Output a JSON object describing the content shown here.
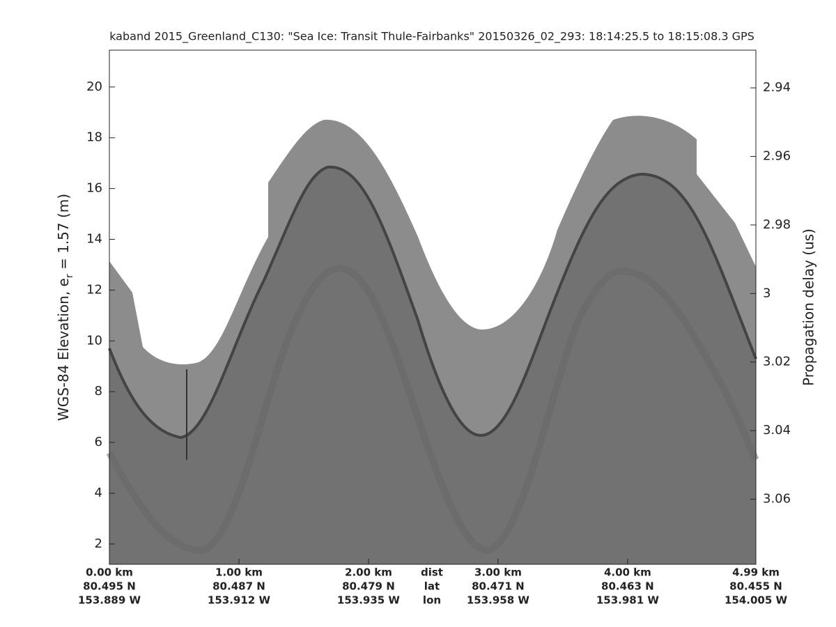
{
  "chart_data": {
    "type": "echogram",
    "title": "kaband 2015_Greenland_C130: \"Sea Ice: Transit Thule-Fairbanks\"  20150326_02_293: 18:14:25.5 to 18:15:08.3 GPS",
    "ylabel": {
      "text": "WGS-84 Elevation, e",
      "sub": "r",
      "after": " = 1.57 (m)"
    },
    "y2label": "Propagation delay (us)",
    "ylim": [
      1.2,
      21.45
    ],
    "yticks": [
      2,
      4,
      6,
      8,
      10,
      12,
      14,
      16,
      18,
      20
    ],
    "y2lim": [
      3.079,
      2.929
    ],
    "y2ticks": [
      2.94,
      2.96,
      2.98,
      3,
      3.02,
      3.04,
      3.06
    ],
    "xlim": [
      0,
      4.99
    ],
    "xticks": [
      {
        "value": 0,
        "label": "0.00 km"
      },
      {
        "value": 1,
        "label": "1.00 km"
      },
      {
        "value": 2,
        "label": "2.00 km"
      },
      {
        "value": 3,
        "label": "3.00 km"
      },
      {
        "value": 4,
        "label": "4.00 km"
      },
      {
        "value": 4.99,
        "label": "4.99 km"
      }
    ],
    "lat_labels": [
      "80.495 N",
      "80.487 N",
      "80.479 N",
      "80.471 N",
      "80.463 N",
      "80.455 N"
    ],
    "lon_labels": [
      "153.889 W",
      "153.912 W",
      "153.935 W",
      "153.958 W",
      "153.981 W",
      "154.005 W"
    ],
    "row_names": [
      "dist",
      "lat",
      "lon"
    ]
  }
}
